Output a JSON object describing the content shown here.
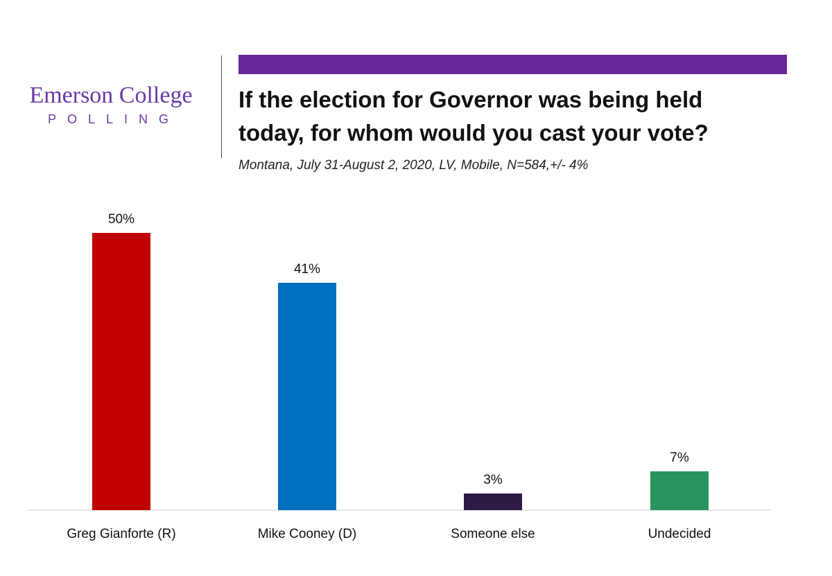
{
  "brand": {
    "name": "Emerson College",
    "sub": "POLLING",
    "color": "#6a3aa4"
  },
  "header": {
    "accent_color": "#66289a",
    "title_line1": "If the election for Governor was being held",
    "title_line2": "today, for whom would you cast your vote?",
    "subtitle": "Montana, July 31-August 2, 2020, LV, Mobile,  N=584,+/-  4%"
  },
  "chart_data": {
    "type": "bar",
    "title": "If the election for Governor was being held today, for whom would you cast your vote?",
    "subtitle": "Montana, July 31-August 2, 2020, LV, Mobile,  N=584,+/-  4%",
    "categories": [
      "Greg Gianforte (R)",
      "Mike Cooney (D)",
      "Someone else",
      "Undecided"
    ],
    "values": [
      50,
      41,
      3,
      7
    ],
    "labels": [
      "50%",
      "41%",
      "3%",
      "7%"
    ],
    "colors": [
      "#c00000",
      "#0070c0",
      "#2e1a47",
      "#2a9461"
    ],
    "xlabel": "",
    "ylabel": "",
    "ylim": [
      0,
      50
    ],
    "grid": false,
    "legend": "none"
  }
}
